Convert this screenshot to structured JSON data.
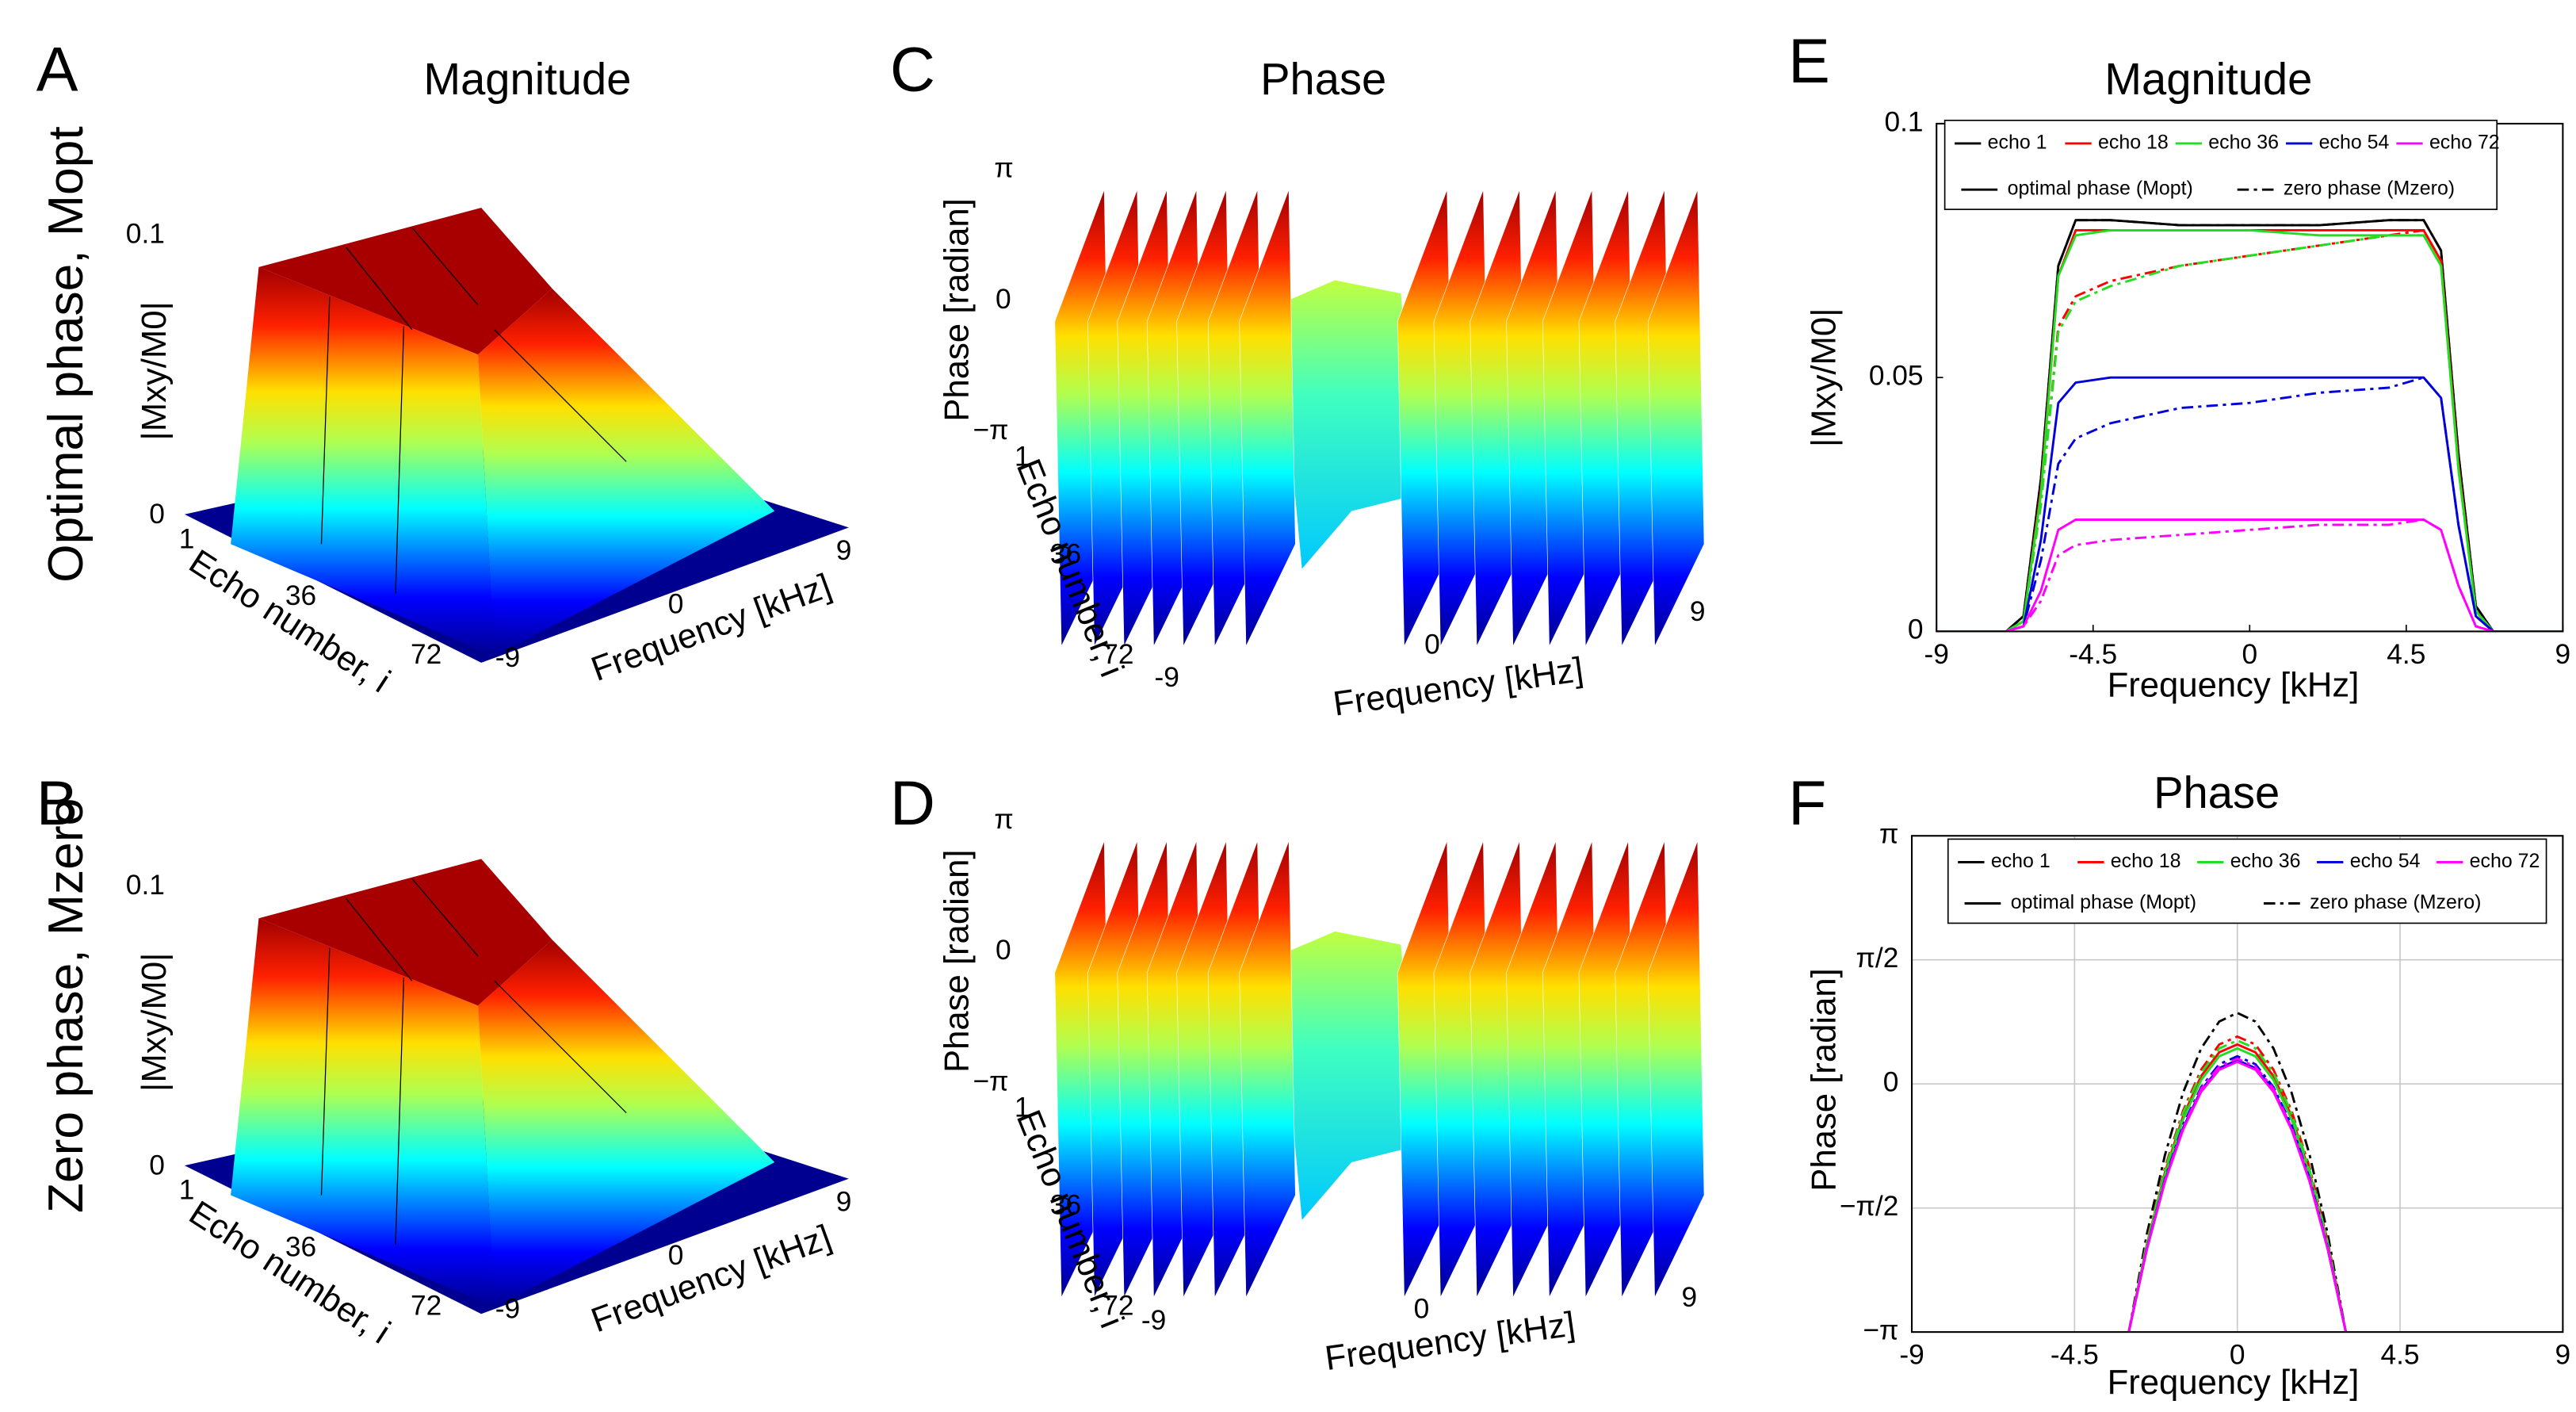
{
  "chart_data": [
    {
      "type": "surface3d",
      "panel": "A",
      "title": "Magnitude",
      "row_label": "Optimal phase, Mopt",
      "zlabel": "|Mxy/M0|",
      "zticks": [
        0,
        0.1
      ],
      "ylabel": "Echo number, i",
      "yticks": [
        1,
        36,
        72
      ],
      "xlabel": "Frequency [kHz]",
      "xticks": [
        -9,
        0,
        9
      ]
    },
    {
      "type": "surface3d",
      "panel": "B",
      "row_label": "Zero phase, Mzero",
      "zlabel": "|Mxy/M0|",
      "zticks": [
        0,
        0.1
      ],
      "ylabel": "Echo number, i",
      "yticks": [
        1,
        36,
        72
      ],
      "xlabel": "Frequency [kHz]",
      "xticks": [
        -9,
        0,
        9
      ]
    },
    {
      "type": "surface3d",
      "panel": "C",
      "title": "Phase",
      "zlabel": "Phase [radian]",
      "zticks": [
        {
          "value": -3.1416,
          "label": "−π"
        },
        0,
        {
          "value": 3.1416,
          "label": "π"
        }
      ],
      "ylabel": "Echo number, i",
      "yticks": [
        1,
        36,
        72
      ],
      "xlabel": "Frequency [kHz]",
      "xticks": [
        -9,
        0,
        9
      ]
    },
    {
      "type": "surface3d",
      "panel": "D",
      "zlabel": "Phase [radian]",
      "zticks": [
        {
          "value": -3.1416,
          "label": "−π"
        },
        0,
        {
          "value": 3.1416,
          "label": "π"
        }
      ],
      "ylabel": "Echo number, i",
      "yticks": [
        1,
        36,
        72
      ],
      "xlabel": "Frequency [kHz]",
      "xticks": [
        -9,
        0,
        9
      ]
    },
    {
      "type": "line",
      "panel": "E",
      "title": "Magnitude",
      "xlabel": "Frequency [kHz]",
      "ylabel": "|Mxy/M0|",
      "xlim": [
        -9,
        9
      ],
      "xticks": [
        -9,
        -4.5,
        0,
        4.5,
        9
      ],
      "ylim": [
        0,
        0.1
      ],
      "yticks": [
        0,
        0.05,
        0.1
      ],
      "grid": false,
      "x": [
        -9,
        -7,
        -6.5,
        -6,
        -5.5,
        -5,
        -4,
        -2,
        0,
        2,
        4,
        5,
        5.5,
        6,
        6.5,
        7,
        9
      ],
      "series": [
        {
          "name": "echo 1",
          "color": "#000000",
          "values": [
            0,
            0,
            0.003,
            0.03,
            0.072,
            0.081,
            0.081,
            0.08,
            0.08,
            0.08,
            0.081,
            0.081,
            0.075,
            0.035,
            0.005,
            0,
            0
          ],
          "zero_values": [
            0,
            0,
            0.003,
            0.03,
            0.072,
            0.081,
            0.081,
            0.08,
            0.08,
            0.08,
            0.081,
            0.081,
            0.075,
            0.035,
            0.005,
            0,
            0
          ]
        },
        {
          "name": "echo 18",
          "color": "#ff0000",
          "values": [
            0,
            0,
            0.002,
            0.028,
            0.07,
            0.079,
            0.079,
            0.079,
            0.079,
            0.079,
            0.079,
            0.079,
            0.073,
            0.033,
            0.004,
            0,
            0
          ],
          "zero_values": [
            0,
            0,
            0.002,
            0.025,
            0.06,
            0.066,
            0.069,
            0.072,
            0.074,
            0.076,
            0.078,
            0.079,
            0.073,
            0.033,
            0.004,
            0,
            0
          ]
        },
        {
          "name": "echo 36",
          "color": "#22dd22",
          "values": [
            0,
            0,
            0.002,
            0.027,
            0.07,
            0.078,
            0.079,
            0.079,
            0.079,
            0.078,
            0.078,
            0.078,
            0.072,
            0.032,
            0.004,
            0,
            0
          ],
          "zero_values": [
            0,
            0,
            0.002,
            0.025,
            0.059,
            0.065,
            0.068,
            0.072,
            0.074,
            0.076,
            0.078,
            0.078,
            0.072,
            0.032,
            0.004,
            0,
            0
          ]
        },
        {
          "name": "echo 54",
          "color": "#0000dd",
          "values": [
            0,
            0,
            0.001,
            0.018,
            0.045,
            0.049,
            0.05,
            0.05,
            0.05,
            0.05,
            0.05,
            0.05,
            0.046,
            0.021,
            0.003,
            0,
            0
          ],
          "zero_values": [
            0,
            0,
            0.001,
            0.014,
            0.033,
            0.038,
            0.041,
            0.044,
            0.045,
            0.047,
            0.048,
            0.05,
            0.046,
            0.021,
            0.003,
            0,
            0
          ]
        },
        {
          "name": "echo 72",
          "color": "#ff00ff",
          "values": [
            0,
            0,
            0.001,
            0.008,
            0.02,
            0.022,
            0.022,
            0.022,
            0.022,
            0.022,
            0.022,
            0.022,
            0.02,
            0.009,
            0.001,
            0,
            0
          ],
          "zero_values": [
            0,
            0,
            0.001,
            0.006,
            0.015,
            0.017,
            0.018,
            0.019,
            0.02,
            0.021,
            0.021,
            0.022,
            0.02,
            0.009,
            0.001,
            0,
            0
          ]
        }
      ],
      "line_styles": [
        {
          "name": "optimal phase (Mopt)",
          "dash": "solid"
        },
        {
          "name": "zero phase (Mzero)",
          "dash": "dashdot"
        }
      ]
    },
    {
      "type": "line",
      "panel": "F",
      "title": "Phase",
      "xlabel": "Frequency [kHz]",
      "ylabel": "Phase [radian]",
      "xlim": [
        -9,
        9
      ],
      "xticks": [
        -9,
        -4.5,
        0,
        4.5,
        9
      ],
      "ylim": [
        -3.1416,
        3.1416
      ],
      "yticks": [
        {
          "value": -3.1416,
          "label": "−π"
        },
        {
          "value": -1.5708,
          "label": "−π/2"
        },
        0,
        {
          "value": 1.5708,
          "label": "π/2"
        },
        {
          "value": 3.1416,
          "label": "π"
        }
      ],
      "grid": true,
      "x": [
        -3,
        -2.5,
        -2,
        -1.5,
        -1,
        -0.5,
        0,
        0.5,
        1,
        1.5,
        2,
        2.5,
        3
      ],
      "series": [
        {
          "name": "echo 1",
          "color": "#000000",
          "values": [
            -3.14,
            -2.09,
            -1.23,
            -0.56,
            -0.08,
            0.2,
            0.3,
            0.2,
            -0.08,
            -0.56,
            -1.23,
            -2.09,
            -3.14
          ],
          "zero_values": [
            -3.14,
            -1.9,
            -0.9,
            -0.11,
            0.45,
            0.79,
            0.9,
            0.79,
            0.45,
            -0.11,
            -0.9,
            -1.9,
            -3.14
          ]
        },
        {
          "name": "echo 18",
          "color": "#ff0000",
          "values": [
            -3.14,
            -2.03,
            -1.12,
            -0.41,
            0.1,
            0.4,
            0.5,
            0.4,
            0.1,
            -0.41,
            -1.12,
            -2.03,
            -3.14
          ],
          "zero_values": [
            -3.14,
            -1.99,
            -1.06,
            -0.34,
            0.18,
            0.5,
            0.6,
            0.5,
            0.18,
            -0.34,
            -1.06,
            -1.99,
            -3.14
          ]
        },
        {
          "name": "echo 36",
          "color": "#22dd22",
          "values": [
            -3.14,
            -2.04,
            -1.15,
            -0.45,
            0.05,
            0.35,
            0.45,
            0.35,
            0.05,
            -0.45,
            -1.15,
            -2.04,
            -3.14
          ],
          "zero_values": [
            -3.14,
            -2.01,
            -1.09,
            -0.37,
            0.14,
            0.45,
            0.55,
            0.45,
            0.14,
            -0.37,
            -1.09,
            -2.01,
            -3.14
          ]
        },
        {
          "name": "echo 54",
          "color": "#0000dd",
          "values": [
            -3.14,
            -2.09,
            -1.23,
            -0.56,
            -0.08,
            0.2,
            0.3,
            0.2,
            -0.08,
            -0.56,
            -1.23,
            -2.09,
            -3.14
          ],
          "zero_values": [
            -3.14,
            -2.07,
            -1.2,
            -0.52,
            -0.04,
            0.25,
            0.35,
            0.25,
            -0.04,
            -0.52,
            -1.2,
            -2.07,
            -3.14
          ]
        },
        {
          "name": "echo 72",
          "color": "#ff00ff",
          "values": [
            -3.14,
            -2.09,
            -1.24,
            -0.58,
            -0.1,
            0.18,
            0.28,
            0.18,
            -0.1,
            -0.58,
            -1.24,
            -2.09,
            -3.14
          ],
          "zero_values": [
            -3.14,
            -2.08,
            -1.22,
            -0.55,
            -0.06,
            0.22,
            0.32,
            0.22,
            -0.06,
            -0.55,
            -1.22,
            -2.08,
            -3.14
          ]
        }
      ],
      "line_styles": [
        {
          "name": "optimal phase (Mopt)",
          "dash": "solid"
        },
        {
          "name": "zero phase (Mzero)",
          "dash": "dashdot"
        }
      ]
    }
  ]
}
